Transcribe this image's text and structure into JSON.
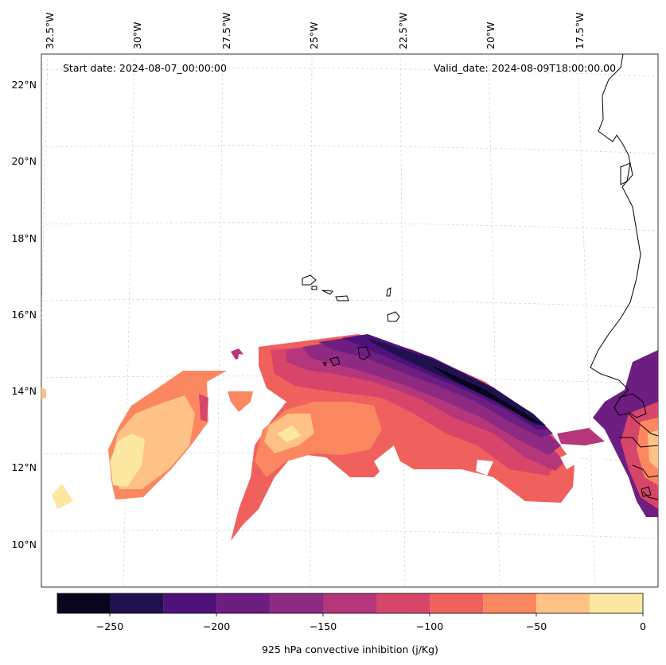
{
  "map": {
    "start_label": "Start date: 2024-08-07_00:00:00",
    "valid_label": "Valid_date: 2024-08-09T18:00:00.00",
    "lon_labels": [
      "32.5°W",
      "30°W",
      "27.5°W",
      "25°W",
      "22.5°W",
      "20°W",
      "17.5°W"
    ],
    "lat_labels": [
      "22°N",
      "20°N",
      "18°N",
      "16°N",
      "14°N",
      "12°N",
      "10°N"
    ],
    "gridlines": true,
    "coastline_color": "#000000"
  },
  "colorbar": {
    "label": "925 hPa convective inhibition (j/Kg)",
    "ticks": [
      "−250",
      "−200",
      "−150",
      "−100",
      "−50",
      "0"
    ],
    "levels": [
      -275,
      -250,
      -225,
      -200,
      -175,
      -150,
      -125,
      -100,
      -75,
      -50,
      -25,
      0
    ],
    "colors": [
      "#07061c",
      "#221150",
      "#4f127b",
      "#6e1e81",
      "#8e2a81",
      "#b5367a",
      "#d8456b",
      "#f0605d",
      "#fb8761",
      "#fec287",
      "#fde8a2"
    ]
  }
}
